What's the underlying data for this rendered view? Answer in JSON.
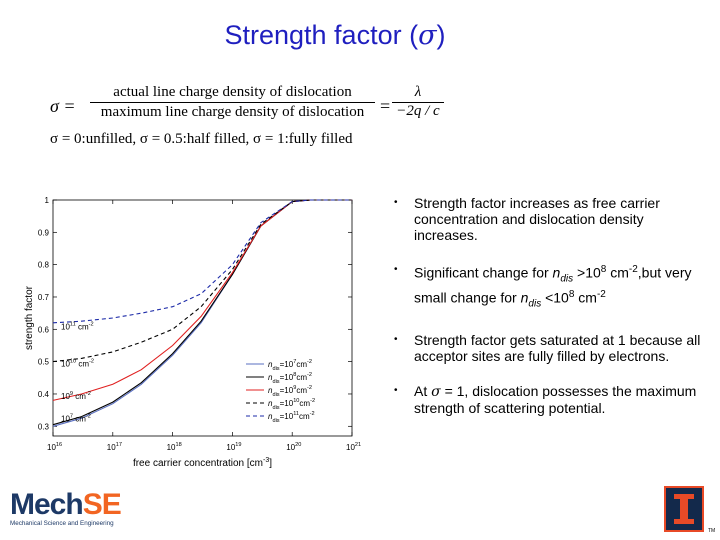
{
  "title": {
    "text": "Strength factor (",
    "sigma": "σ",
    "close": ")"
  },
  "equations": {
    "lhs": "σ =",
    "numerator": "actual line charge density of dislocation",
    "denominator": "maximum line charge density of dislocation",
    "equals": "=",
    "rhs_num": "λ",
    "rhs_den": "−2q / c",
    "conditions": "σ = 0:unfilled,  σ = 0.5:half  filled,  σ = 1:fully filled"
  },
  "bullets": [
    {
      "text": "Strength factor increases as free carrier concentration and dislocation density increases."
    },
    {
      "pre": "Significant change for ",
      "n": "n",
      "sub": "dis",
      "mid": " >10",
      "sup1": "8",
      "unit1": " cm",
      "sup2": "-2",
      "post": ",but very small change for ",
      "n2": "n",
      "sub2": "dis",
      "mid2": " <10",
      "sup3": "8",
      "unit2": " cm",
      "sup4": "-2"
    },
    {
      "text": "Strength factor gets saturated at 1 because all acceptor sites are fully filled by electrons."
    },
    {
      "pre": "At ",
      "sigma": "σ",
      "post": " = 1, dislocation possesses the maximum strength of scattering potential."
    }
  ],
  "bullet_symbol": "•",
  "chart_data": {
    "type": "line",
    "title": "",
    "xlabel": "free carrier concentration [cm",
    "xlabel_sup": "-3",
    "xlabel_close": "]",
    "ylabel": "strength factor",
    "x_scale": "log",
    "xlim": [
      1e+16,
      1e+21
    ],
    "ylim": [
      0.27,
      1.0
    ],
    "xticks": [
      {
        "base": "10",
        "exp": "16"
      },
      {
        "base": "10",
        "exp": "17"
      },
      {
        "base": "10",
        "exp": "18"
      },
      {
        "base": "10",
        "exp": "19"
      },
      {
        "base": "10",
        "exp": "20"
      },
      {
        "base": "10",
        "exp": "21"
      }
    ],
    "yticks": [
      "0.3",
      "0.4",
      "0.5",
      "0.6",
      "0.7",
      "0.8",
      "0.9",
      "1"
    ],
    "series": [
      {
        "name": "n_dis=10^7cm^-2",
        "label_n": "n",
        "label_sub": "dis",
        "label_eq": "=10",
        "label_exp": "7",
        "label_unit": "cm",
        "label_uexp": "-2",
        "color": "#5a6fc0",
        "dash": "",
        "x": [
          1e+16,
          3e+16,
          1e+17,
          3e+17,
          1e+18,
          3e+18,
          1e+19,
          3e+19,
          1e+20,
          2e+20,
          1e+21
        ],
        "y": [
          0.3,
          0.325,
          0.37,
          0.43,
          0.52,
          0.62,
          0.77,
          0.92,
          0.995,
          1.0,
          1.0
        ]
      },
      {
        "name": "n_dis=10^8cm^-2",
        "label_n": "n",
        "label_sub": "dis",
        "label_eq": "=10",
        "label_exp": "8",
        "label_unit": "cm",
        "label_uexp": "-2",
        "color": "#000000",
        "dash": "",
        "x": [
          1e+16,
          3e+16,
          1e+17,
          3e+17,
          1e+18,
          3e+18,
          1e+19,
          3e+19,
          1e+20,
          2e+20,
          1e+21
        ],
        "y": [
          0.305,
          0.33,
          0.375,
          0.435,
          0.525,
          0.625,
          0.77,
          0.92,
          0.995,
          1.0,
          1.0
        ]
      },
      {
        "name": "n_dis=10^9cm^-2",
        "label_n": "n",
        "label_sub": "dis",
        "label_eq": "=10",
        "label_exp": "9",
        "label_unit": "cm",
        "label_uexp": "-2",
        "color": "#e02020",
        "dash": "",
        "x": [
          1e+16,
          3e+16,
          1e+17,
          3e+17,
          1e+18,
          3e+18,
          1e+19,
          3e+19,
          1e+20,
          2e+20,
          1e+21
        ],
        "y": [
          0.38,
          0.4,
          0.43,
          0.475,
          0.55,
          0.64,
          0.775,
          0.92,
          0.995,
          1.0,
          1.0
        ]
      },
      {
        "name": "n_dis=10^10cm^-2",
        "label_n": "n",
        "label_sub": "dis",
        "label_eq": "=10",
        "label_exp": "10",
        "label_unit": "cm",
        "label_uexp": "-2",
        "color": "#000000",
        "dash": "4,3",
        "x": [
          1e+16,
          3e+16,
          1e+17,
          3e+17,
          1e+18,
          3e+18,
          1e+19,
          3e+19,
          1e+20,
          2e+20,
          1e+21
        ],
        "y": [
          0.5,
          0.51,
          0.53,
          0.56,
          0.6,
          0.67,
          0.785,
          0.925,
          0.995,
          1.0,
          1.0
        ]
      },
      {
        "name": "n_dis=10^11cm^-2",
        "label_n": "n",
        "label_sub": "dis",
        "label_eq": "=10",
        "label_exp": "11",
        "label_unit": "cm",
        "label_uexp": "-2",
        "color": "#1d2ba8",
        "dash": "4,3",
        "x": [
          1e+16,
          3e+16,
          1e+17,
          3e+17,
          1e+18,
          3e+18,
          1e+19,
          3e+19,
          1e+20,
          2e+20,
          1e+21
        ],
        "y": [
          0.62,
          0.625,
          0.635,
          0.65,
          0.67,
          0.71,
          0.8,
          0.93,
          0.995,
          1.0,
          1.0
        ]
      }
    ],
    "annotations": [
      {
        "series": 4,
        "base": "10",
        "exp": "11",
        "unit": " cm",
        "uexp": "-2",
        "x": 1e+16,
        "y": 0.6
      },
      {
        "series": 3,
        "base": "10",
        "exp": "10",
        "unit": " cm",
        "uexp": "-2",
        "x": 1e+16,
        "y": 0.485
      },
      {
        "series": 2,
        "base": "10",
        "exp": "9",
        "unit": " cm",
        "uexp": "-2",
        "x": 1e+16,
        "y": 0.385
      },
      {
        "series": 0,
        "base": "10",
        "exp": "7",
        "unit": " cm",
        "uexp": "-2",
        "x": 1e+16,
        "y": 0.315
      }
    ]
  },
  "logo": {
    "mech": "Mech",
    "se": "SE",
    "subtitle": "Mechanical Science and Engineering",
    "colors": {
      "navy": "#1d3966",
      "orange": "#f26522"
    }
  },
  "illinois": {
    "icon": "illinois-block-i-icon",
    "tm": "TM",
    "colors": {
      "navy": "#13294b",
      "orange": "#e84a27"
    }
  }
}
